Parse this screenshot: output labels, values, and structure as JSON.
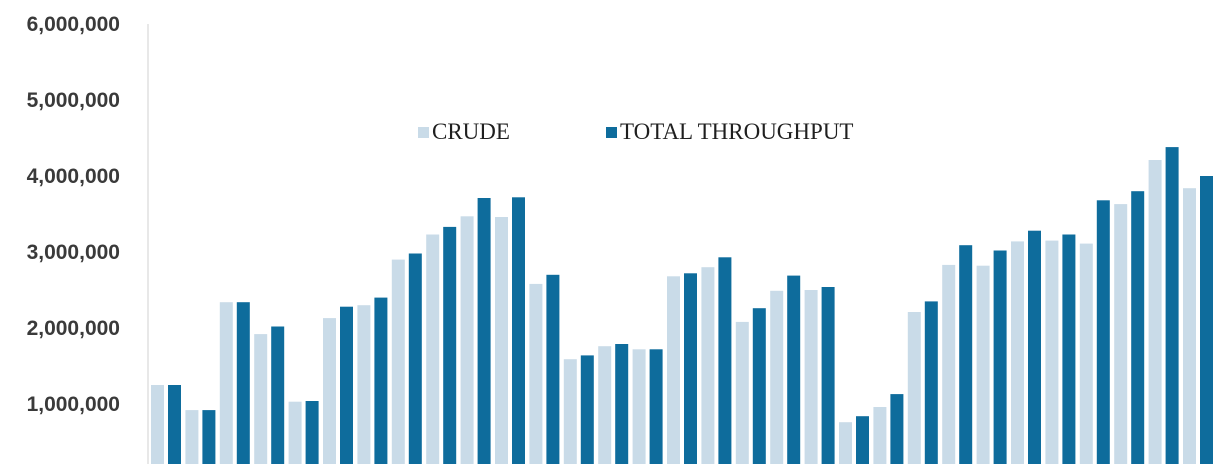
{
  "chart_data": {
    "type": "bar",
    "title": "",
    "xlabel": "",
    "ylabel": "",
    "y_ticks": [
      "1,000,000",
      "2,000,000",
      "3,000,000",
      "4,000,000",
      "5,000,000",
      "6,000,000"
    ],
    "y_tick_values": [
      1000000,
      2000000,
      3000000,
      4000000,
      5000000,
      6000000
    ],
    "ylim": [
      0,
      6000000
    ],
    "grid": false,
    "legend_position": "top-center",
    "colors": {
      "crude": "#c9dbe8",
      "total_throughput": "#0e6c9c"
    },
    "series": [
      {
        "name": "CRUDE",
        "values": [
          1250000,
          920000,
          2340000,
          1920000,
          1030000,
          2130000,
          2300000,
          2900000,
          3230000,
          3470000,
          3460000,
          2580000,
          1590000,
          1760000,
          1720000,
          2680000,
          2800000,
          2080000,
          2490000,
          2500000,
          760000,
          960000,
          2210000,
          2830000,
          2820000,
          3140000,
          3150000,
          3110000,
          3630000,
          4210000,
          3840000
        ]
      },
      {
        "name": "TOTAL THROUGHPUT",
        "values": [
          1250000,
          920000,
          2340000,
          2020000,
          1040000,
          2280000,
          2400000,
          2980000,
          3330000,
          3710000,
          3720000,
          2700000,
          1640000,
          1790000,
          1720000,
          2720000,
          2930000,
          2260000,
          2690000,
          2540000,
          840000,
          1130000,
          2350000,
          3090000,
          3020000,
          3280000,
          3230000,
          3680000,
          3800000,
          4380000,
          4000000
        ]
      }
    ]
  }
}
